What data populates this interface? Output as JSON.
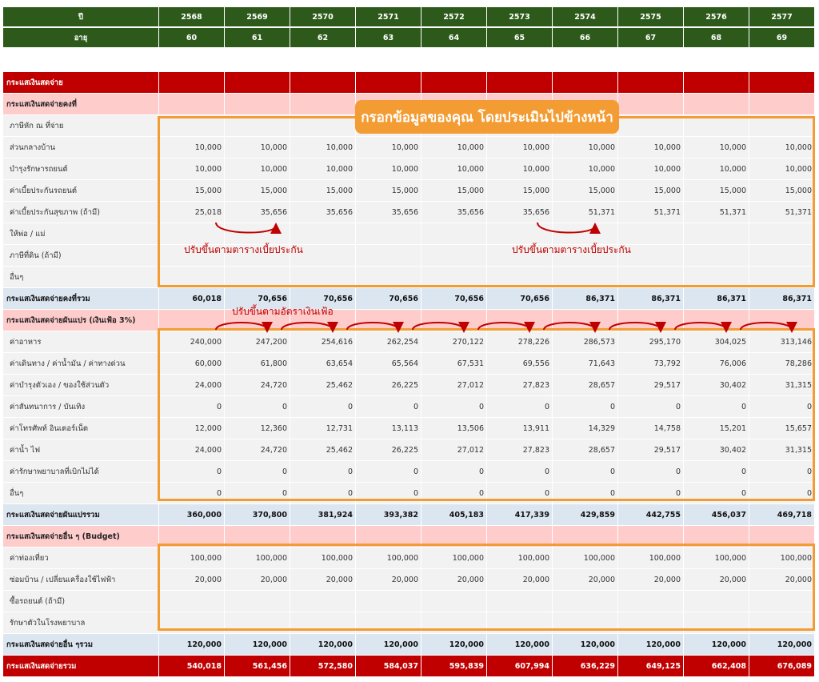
{
  "header": {
    "year_label": "ปี",
    "age_label": "อายุ",
    "years": [
      "2568",
      "2569",
      "2570",
      "2571",
      "2572",
      "2573",
      "2574",
      "2575",
      "2576",
      "2577"
    ],
    "ages": [
      "60",
      "61",
      "62",
      "63",
      "64",
      "65",
      "66",
      "67",
      "68",
      "69"
    ]
  },
  "rows": [
    {
      "label": "กระแสเงินสดจ่าย",
      "type": "sec",
      "values": [
        "",
        "",
        "",
        "",
        "",
        "",
        "",
        "",
        "",
        ""
      ]
    },
    {
      "label": "กระแสเงินสดจ่ายคงที่",
      "type": "subsec",
      "values": [
        "",
        "",
        "",
        "",
        "",
        "",
        "",
        "",
        "",
        ""
      ]
    },
    {
      "label": "ภาษีหัก ณ ที่จ่าย",
      "type": "item",
      "values": [
        "",
        "",
        "",
        "",
        "",
        "",
        "",
        "",
        "",
        ""
      ]
    },
    {
      "label": "ส่วนกลางบ้าน",
      "type": "item",
      "values": [
        "10,000",
        "10,000",
        "10,000",
        "10,000",
        "10,000",
        "10,000",
        "10,000",
        "10,000",
        "10,000",
        "10,000"
      ]
    },
    {
      "label": "บำรุงรักษารถยนต์",
      "type": "item",
      "values": [
        "10,000",
        "10,000",
        "10,000",
        "10,000",
        "10,000",
        "10,000",
        "10,000",
        "10,000",
        "10,000",
        "10,000"
      ]
    },
    {
      "label": "ค่าเบี้ยประกันรถยนต์",
      "type": "item",
      "values": [
        "15,000",
        "15,000",
        "15,000",
        "15,000",
        "15,000",
        "15,000",
        "15,000",
        "15,000",
        "15,000",
        "15,000"
      ]
    },
    {
      "label": "ค่าเบี้ยประกันสุขภาพ (ถ้ามี)",
      "type": "item",
      "values": [
        "25,018",
        "35,656",
        "35,656",
        "35,656",
        "35,656",
        "35,656",
        "51,371",
        "51,371",
        "51,371",
        "51,371"
      ]
    },
    {
      "label": "ให้พ่อ / แม่",
      "type": "item",
      "values": [
        "",
        "",
        "",
        "",
        "",
        "",
        "",
        "",
        "",
        ""
      ]
    },
    {
      "label": "ภาษีที่ดิน (ถ้ามี)",
      "type": "item",
      "values": [
        "",
        "",
        "",
        "",
        "",
        "",
        "",
        "",
        "",
        ""
      ]
    },
    {
      "label": "อื่นๆ",
      "type": "item",
      "values": [
        "",
        "",
        "",
        "",
        "",
        "",
        "",
        "",
        "",
        ""
      ]
    },
    {
      "label": "กระแสเงินสดจ่ายคงที่รวม",
      "type": "sum",
      "values": [
        "60,018",
        "70,656",
        "70,656",
        "70,656",
        "70,656",
        "70,656",
        "86,371",
        "86,371",
        "86,371",
        "86,371"
      ]
    },
    {
      "label": "กระแสเงินสดจ่ายผันแปร (เงินเฟ้อ 3%)",
      "type": "subsec",
      "values": [
        "",
        "",
        "",
        "",
        "",
        "",
        "",
        "",
        "",
        ""
      ]
    },
    {
      "label": "ค่าอาหาร",
      "type": "item",
      "values": [
        "240,000",
        "247,200",
        "254,616",
        "262,254",
        "270,122",
        "278,226",
        "286,573",
        "295,170",
        "304,025",
        "313,146"
      ]
    },
    {
      "label": "ค่าเดินทาง / ค่าน้ำมัน / ค่าทางด่วน",
      "type": "item",
      "values": [
        "60,000",
        "61,800",
        "63,654",
        "65,564",
        "67,531",
        "69,556",
        "71,643",
        "73,792",
        "76,006",
        "78,286"
      ]
    },
    {
      "label": "ค่าบำรุงตัวเอง / ของใช้ส่วนตัว",
      "type": "item",
      "values": [
        "24,000",
        "24,720",
        "25,462",
        "26,225",
        "27,012",
        "27,823",
        "28,657",
        "29,517",
        "30,402",
        "31,315"
      ]
    },
    {
      "label": "ค่าสันทนาการ / บันเทิง",
      "type": "item",
      "values": [
        "0",
        "0",
        "0",
        "0",
        "0",
        "0",
        "0",
        "0",
        "0",
        "0"
      ]
    },
    {
      "label": "ค่าโทรศัพท์ อินเตอร์เน็ต",
      "type": "item",
      "values": [
        "12,000",
        "12,360",
        "12,731",
        "13,113",
        "13,506",
        "13,911",
        "14,329",
        "14,758",
        "15,201",
        "15,657"
      ]
    },
    {
      "label": "ค่าน้ำ ไฟ",
      "type": "item",
      "values": [
        "24,000",
        "24,720",
        "25,462",
        "26,225",
        "27,012",
        "27,823",
        "28,657",
        "29,517",
        "30,402",
        "31,315"
      ]
    },
    {
      "label": "ค่ารักษาพยาบาลที่เบิกไม่ได้",
      "type": "item",
      "values": [
        "0",
        "0",
        "0",
        "0",
        "0",
        "0",
        "0",
        "0",
        "0",
        "0"
      ]
    },
    {
      "label": "อื่นๆ",
      "type": "item",
      "values": [
        "0",
        "0",
        "0",
        "0",
        "0",
        "0",
        "0",
        "0",
        "0",
        "0"
      ]
    },
    {
      "label": "กระแสเงินสดจ่ายผันแปรรวม",
      "type": "sum",
      "values": [
        "360,000",
        "370,800",
        "381,924",
        "393,382",
        "405,183",
        "417,339",
        "429,859",
        "442,755",
        "456,037",
        "469,718"
      ]
    },
    {
      "label": "กระแสเงินสดจ่ายอื่น ๆ (Budget)",
      "type": "subsec",
      "values": [
        "",
        "",
        "",
        "",
        "",
        "",
        "",
        "",
        "",
        ""
      ]
    },
    {
      "label": "ค่าท่องเที่ยว",
      "type": "item",
      "values": [
        "100,000",
        "100,000",
        "100,000",
        "100,000",
        "100,000",
        "100,000",
        "100,000",
        "100,000",
        "100,000",
        "100,000"
      ]
    },
    {
      "label": "ซ่อมบ้าน / เปลี่ยนเครื่องใช้ไฟฟ้า",
      "type": "item",
      "values": [
        "20,000",
        "20,000",
        "20,000",
        "20,000",
        "20,000",
        "20,000",
        "20,000",
        "20,000",
        "20,000",
        "20,000"
      ]
    },
    {
      "label": "ซื้อรถยนต์ (ถ้ามี)",
      "type": "item",
      "values": [
        "",
        "",
        "",
        "",
        "",
        "",
        "",
        "",
        "",
        ""
      ]
    },
    {
      "label": "รักษาตัวในโรงพยาบาล",
      "type": "item",
      "values": [
        "",
        "",
        "",
        "",
        "",
        "",
        "",
        "",
        "",
        ""
      ]
    },
    {
      "label": "กระแสเงินสดจ่ายอื่น ๆรวม",
      "type": "sum",
      "values": [
        "120,000",
        "120,000",
        "120,000",
        "120,000",
        "120,000",
        "120,000",
        "120,000",
        "120,000",
        "120,000",
        "120,000"
      ]
    },
    {
      "label": "กระแสเงินสดจ่ายรวม",
      "type": "total",
      "values": [
        "540,018",
        "561,456",
        "572,580",
        "584,037",
        "595,839",
        "607,994",
        "636,229",
        "649,125",
        "662,408",
        "676,089"
      ]
    }
  ],
  "annotations": {
    "banner": "กรอกข้อมูลของคุณ โดยประเมินไปข้างหน้า",
    "note_insurance_1": "ปรับขึ้นตามตารางเบี้ยประกัน",
    "note_insurance_2": "ปรับขึ้นตามตารางเบี้ยประกัน",
    "note_inflation": "ปรับขึ้นตามอัตราเงินเฟ้อ"
  },
  "colors": {
    "header_green": "#2d5a1b",
    "section_red": "#c00000",
    "subsection_pink": "#ffcccc",
    "sum_blue": "#dce6f1",
    "highlight_orange": "#f39c33"
  }
}
